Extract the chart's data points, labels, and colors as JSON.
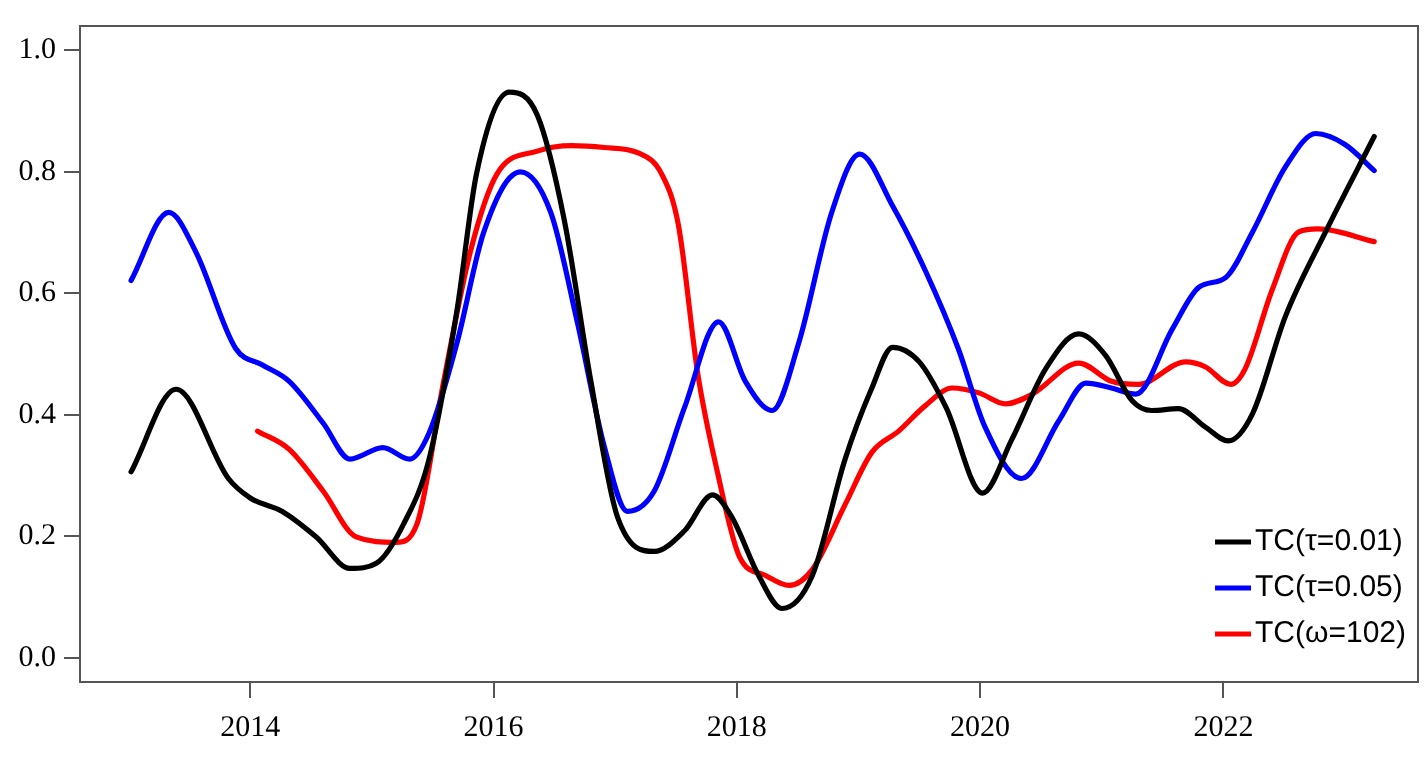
{
  "chart_data": {
    "type": "line",
    "xlim": [
      2012.6,
      2023.6
    ],
    "ylim": [
      -0.04,
      1.04
    ],
    "xticks": [
      2014,
      2016,
      2018,
      2020,
      2022
    ],
    "yticks": [
      {
        "value": 0,
        "label": "0.0"
      },
      {
        "value": 0.2,
        "label": "0.2"
      },
      {
        "value": 0.4,
        "label": "0.4"
      },
      {
        "value": 0.6,
        "label": "0.6"
      },
      {
        "value": 0.8,
        "label": "0.8"
      },
      {
        "value": 1,
        "label": "1.0"
      }
    ],
    "grid": false,
    "legend": "bottom right",
    "marker": "none",
    "line_style": "solid",
    "series": [
      {
        "name": "TC(τ=0.01)",
        "color": "#000000",
        "x": [
          2013.02,
          2013.39,
          2013.82,
          2014.0,
          2014.26,
          2014.54,
          2014.82,
          2015.04,
          2015.26,
          2015.47,
          2015.7,
          2015.86,
          2016.13,
          2016.36,
          2016.58,
          2016.8,
          2017.02,
          2017.32,
          2017.57,
          2017.8,
          2017.96,
          2018.18,
          2018.37,
          2018.62,
          2018.89,
          2019.11,
          2019.28,
          2019.5,
          2019.72,
          2020.02,
          2020.26,
          2020.54,
          2020.81,
          2021.03,
          2021.25,
          2021.41,
          2021.63,
          2021.85,
          2022.04,
          2022.24,
          2022.51,
          2022.84,
          2023.24
        ],
        "values": [
          0.306,
          0.442,
          0.295,
          0.263,
          0.241,
          0.199,
          0.147,
          0.156,
          0.22,
          0.327,
          0.573,
          0.797,
          0.931,
          0.893,
          0.722,
          0.455,
          0.231,
          0.175,
          0.209,
          0.268,
          0.231,
          0.135,
          0.081,
          0.135,
          0.327,
          0.444,
          0.511,
          0.487,
          0.412,
          0.271,
          0.359,
          0.476,
          0.533,
          0.498,
          0.423,
          0.407,
          0.41,
          0.38,
          0.357,
          0.402,
          0.562,
          0.701,
          0.858
        ]
      },
      {
        "name": "TC(τ=0.05)",
        "color": "#0000ff",
        "x": [
          2013.02,
          2013.33,
          2013.55,
          2013.88,
          2014.1,
          2014.32,
          2014.6,
          2014.82,
          2015.09,
          2015.31,
          2015.47,
          2015.7,
          2015.92,
          2016.22,
          2016.47,
          2016.69,
          2016.91,
          2017.1,
          2017.32,
          2017.57,
          2017.85,
          2018.07,
          2018.29,
          2018.51,
          2018.78,
          2019.01,
          2019.28,
          2019.55,
          2019.82,
          2020.04,
          2020.34,
          2020.65,
          2020.87,
          2021.08,
          2021.28,
          2021.58,
          2021.8,
          2022.02,
          2022.24,
          2022.51,
          2022.76,
          2023.0,
          2023.24
        ],
        "values": [
          0.621,
          0.733,
          0.669,
          0.509,
          0.482,
          0.455,
          0.386,
          0.327,
          0.346,
          0.327,
          0.37,
          0.519,
          0.701,
          0.8,
          0.733,
          0.551,
          0.348,
          0.241,
          0.274,
          0.412,
          0.553,
          0.455,
          0.407,
          0.519,
          0.733,
          0.829,
          0.744,
          0.637,
          0.509,
          0.38,
          0.295,
          0.391,
          0.452,
          0.444,
          0.434,
          0.541,
          0.61,
          0.626,
          0.701,
          0.808,
          0.863,
          0.845,
          0.802
        ]
      },
      {
        "name": "TC(ω=102)",
        "color": "#ff0000",
        "x": [
          2014.06,
          2014.32,
          2014.6,
          2014.87,
          2015.2,
          2015.37,
          2015.59,
          2015.81,
          2016.03,
          2016.36,
          2016.64,
          2016.91,
          2017.19,
          2017.38,
          2017.52,
          2017.68,
          2017.84,
          2018.02,
          2018.24,
          2018.43,
          2018.62,
          2018.89,
          2019.11,
          2019.33,
          2019.55,
          2019.77,
          2019.99,
          2020.21,
          2020.43,
          2020.81,
          2021.08,
          2021.3,
          2021.69,
          2021.85,
          2022.06,
          2022.18,
          2022.4,
          2022.62,
          2022.78,
          2023.24
        ],
        "values": [
          0.373,
          0.343,
          0.274,
          0.199,
          0.19,
          0.22,
          0.455,
          0.669,
          0.797,
          0.834,
          0.843,
          0.84,
          0.831,
          0.797,
          0.712,
          0.466,
          0.306,
          0.167,
          0.135,
          0.119,
          0.145,
          0.252,
          0.338,
          0.373,
          0.415,
          0.444,
          0.436,
          0.418,
          0.434,
          0.485,
          0.455,
          0.45,
          0.487,
          0.479,
          0.45,
          0.476,
          0.605,
          0.701,
          0.706,
          0.685
        ]
      }
    ]
  }
}
